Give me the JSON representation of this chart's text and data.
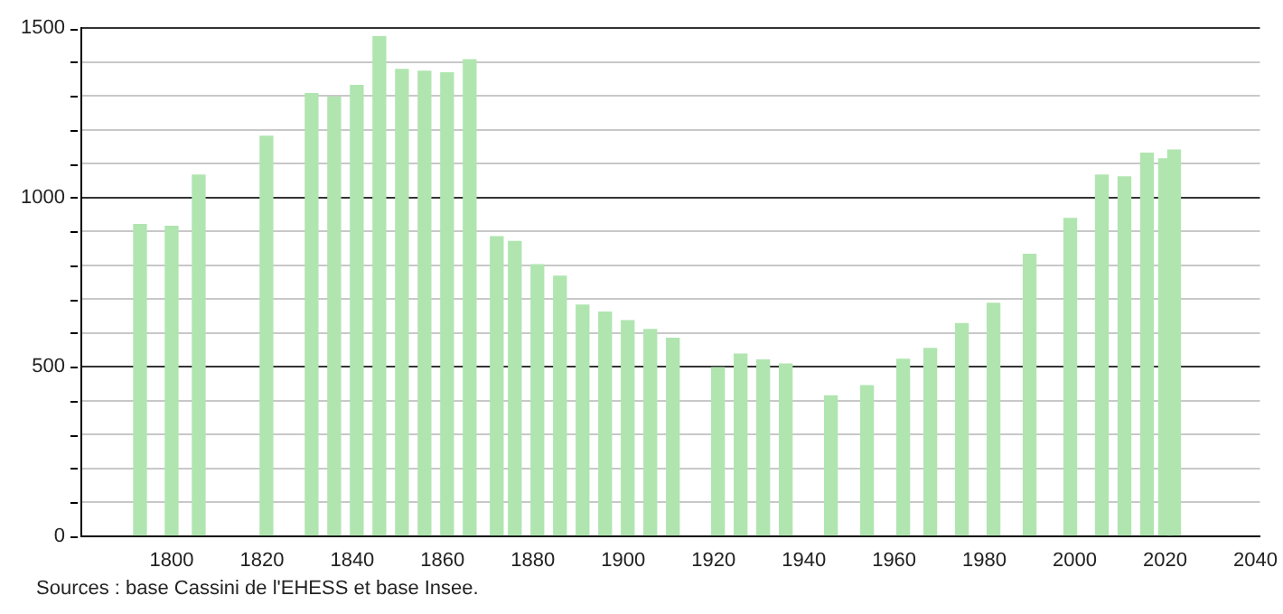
{
  "chart_data": {
    "type": "bar",
    "color": "#b0e5b0",
    "x": [
      1793,
      1800,
      1806,
      1821,
      1831,
      1836,
      1841,
      1846,
      1851,
      1856,
      1861,
      1866,
      1872,
      1876,
      1881,
      1886,
      1891,
      1896,
      1901,
      1906,
      1911,
      1921,
      1926,
      1931,
      1936,
      1946,
      1954,
      1962,
      1968,
      1975,
      1982,
      1990,
      1999,
      2006,
      2011,
      2016,
      2020,
      2022
    ],
    "values": [
      920,
      915,
      1066,
      1181,
      1307,
      1297,
      1331,
      1475,
      1378,
      1373,
      1368,
      1407,
      884,
      870,
      801,
      767,
      682,
      661,
      636,
      610,
      584,
      497,
      537,
      520,
      508,
      414,
      444,
      522,
      554,
      627,
      687,
      832,
      938,
      1066,
      1061,
      1131,
      1114,
      1140
    ],
    "xlim": [
      1780,
      2041
    ],
    "xticks": [
      1800,
      1820,
      1840,
      1860,
      1880,
      1900,
      1920,
      1940,
      1960,
      1980,
      2000,
      2020,
      2040
    ],
    "ylim": [
      0,
      1500
    ],
    "yticks": [
      0,
      {
        "value": 100,
        "label": null
      },
      {
        "value": 200,
        "label": null
      },
      {
        "value": 300,
        "label": null
      },
      {
        "value": 400,
        "label": null
      },
      500,
      {
        "value": 600,
        "label": null
      },
      {
        "value": 700,
        "label": null
      },
      {
        "value": 800,
        "label": null
      },
      {
        "value": 900,
        "label": null
      },
      1000,
      {
        "value": 1100,
        "label": null
      },
      {
        "value": 1200,
        "label": null
      },
      {
        "value": 1300,
        "label": null
      },
      {
        "value": 1400,
        "label": null
      },
      1500
    ],
    "grid": "y",
    "annotations": [
      "Sources : base Cassini de l'EHESS et base Insee."
    ]
  }
}
